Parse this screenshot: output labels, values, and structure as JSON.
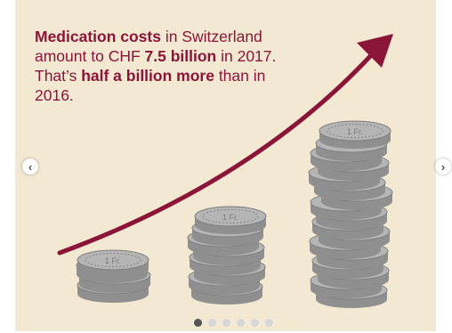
{
  "slide": {
    "text_parts": {
      "bold1": "Medication costs",
      "t1": " in Switzerland amount to CHF ",
      "bold2": "7.5 billion",
      "t2": " in 2017. That’s ",
      "bold3": "half a billion more",
      "t3": " than in 2016."
    },
    "coin_label": "1 Fr.",
    "colors": {
      "background": "#f3e9d2",
      "accent": "#8a1538",
      "coin": "#b5b5b5",
      "coin_edge": "#7d7d7d"
    }
  },
  "carousel": {
    "prev_label": "‹",
    "next_label": "›",
    "total_slides": 6,
    "active_slide": 1
  }
}
